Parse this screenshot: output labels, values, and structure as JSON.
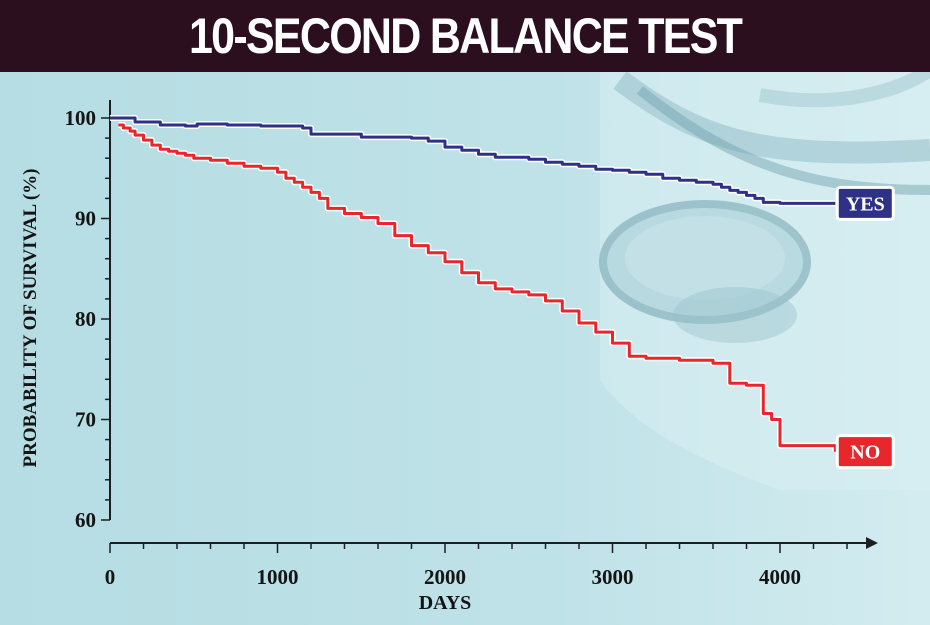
{
  "title": "10-SECOND BALANCE TEST",
  "colors": {
    "title_bg": "#2b0f1e",
    "yes": "#2e3185",
    "no": "#e8262b",
    "axis": "#1e1e1e"
  },
  "chart_data": {
    "type": "line",
    "title": "10-SECOND BALANCE TEST",
    "xlabel": "DAYS",
    "ylabel": "PROBABILITY OF SURVIVAL (%)",
    "xlim": [
      0,
      4600
    ],
    "ylim": [
      60,
      101
    ],
    "x_ticks": [
      "0",
      "1000",
      "2000",
      "3000",
      "4000"
    ],
    "y_ticks": [
      "60",
      "70",
      "80",
      "90",
      "100"
    ],
    "series": [
      {
        "name": "YES",
        "color": "#2e3185",
        "x": [
          0,
          150,
          300,
          450,
          520,
          700,
          900,
          1150,
          1200,
          1500,
          1800,
          1900,
          2000,
          2100,
          2200,
          2300,
          2400,
          2500,
          2600,
          2700,
          2800,
          2900,
          3000,
          3100,
          3200,
          3300,
          3400,
          3500,
          3600,
          3650,
          3700,
          3750,
          3800,
          3850,
          3900,
          4000,
          4330
        ],
        "y": [
          100,
          99.6,
          99.3,
          99.2,
          99.4,
          99.3,
          99.2,
          99.0,
          98.4,
          98.1,
          98.0,
          97.7,
          97.1,
          96.8,
          96.4,
          96.1,
          96.1,
          95.9,
          95.6,
          95.4,
          95.2,
          94.9,
          94.8,
          94.6,
          94.4,
          94.0,
          93.8,
          93.6,
          93.4,
          93.1,
          92.8,
          92.6,
          92.3,
          92.0,
          91.6,
          91.5,
          91.5
        ]
      },
      {
        "name": "NO",
        "color": "#e8262b",
        "x": [
          50,
          80,
          120,
          150,
          200,
          250,
          300,
          350,
          400,
          450,
          500,
          600,
          700,
          800,
          900,
          1000,
          1050,
          1100,
          1150,
          1200,
          1250,
          1300,
          1400,
          1500,
          1600,
          1700,
          1800,
          1900,
          2000,
          2100,
          2200,
          2300,
          2400,
          2500,
          2600,
          2700,
          2800,
          2900,
          3000,
          3100,
          3200,
          3300,
          3400,
          3500,
          3600,
          3650,
          3700,
          3800,
          3900,
          3950,
          4000,
          4330
        ],
        "y": [
          99.3,
          99.0,
          98.7,
          98.3,
          97.8,
          97.3,
          96.9,
          96.7,
          96.5,
          96.3,
          96.0,
          95.8,
          95.5,
          95.2,
          95.0,
          94.6,
          94.0,
          93.6,
          93.1,
          92.6,
          92.0,
          91.0,
          90.5,
          90.1,
          89.5,
          88.3,
          87.3,
          86.6,
          85.7,
          84.6,
          83.6,
          83.0,
          82.7,
          82.4,
          81.8,
          80.8,
          79.6,
          78.7,
          77.6,
          76.3,
          76.1,
          76.1,
          75.9,
          75.9,
          75.6,
          75.6,
          73.6,
          73.4,
          70.6,
          70.0,
          67.4,
          66.8
        ]
      }
    ],
    "grid": false,
    "legend": "labels at line ends (right)"
  }
}
